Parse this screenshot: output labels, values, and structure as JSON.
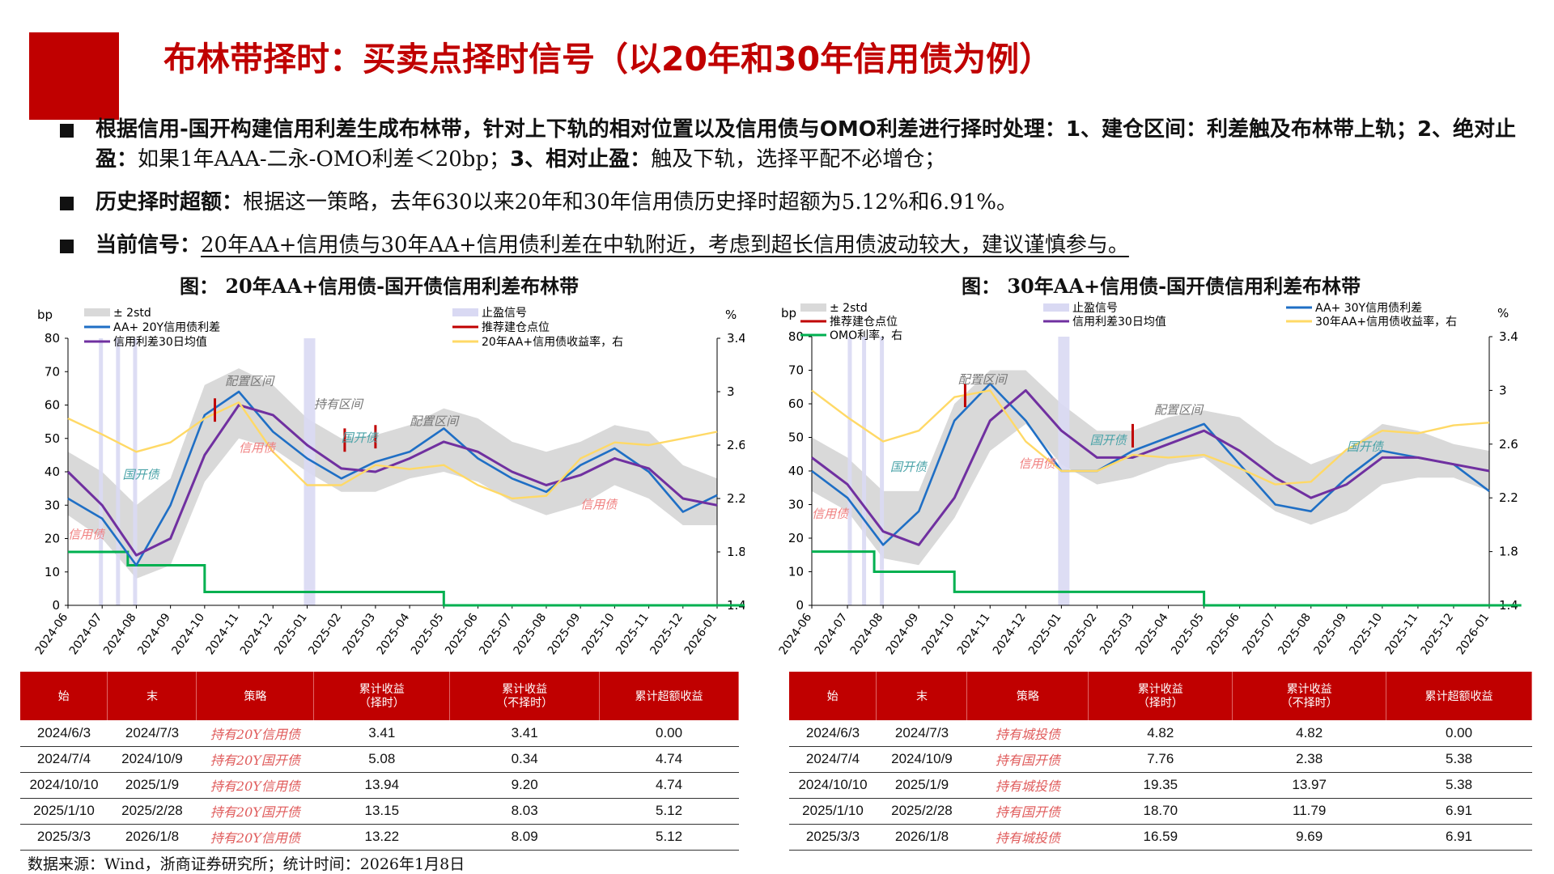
{
  "page_title": "布林带择时：买卖点择时信号（以20年和30年信用债为例）",
  "bullets": [
    {
      "head": "根据信用-国开构建信用利差生成布林带，针对上下轨的相对位置以及信用债与OMO利差进行择时处理：1、建仓区间：利差触及布林带上轨；2、绝对止盈：",
      "body": "如果1年AAA-二永-OMO利差＜20bp；",
      "head2": "3、相对止盈：",
      "body2": "触及下轨，选择平配不必增仓；"
    },
    {
      "head": "历史择时超额：",
      "body": "根据这一策略，去年630以来20年和30年信用债历史择时超额为5.12%和6.91%。"
    },
    {
      "head": "当前信号：",
      "body": "20年AA+信用债与30年AA+信用债利差在中轨附近，考虑到超长信用债波动较大，建议谨慎参与。"
    }
  ],
  "source_note": "数据来源：Wind，浙商证券研究所；统计时间：2026年1月8日",
  "colors": {
    "accent": "#c00000",
    "band": "#d9d9d9",
    "stop_band": "#d9d9f3",
    "spread": "#1f6fc5",
    "ma": "#7030a0",
    "yield": "#ffd966",
    "omo": "#00b050",
    "buy": "#c00000",
    "annot_red": "#f08080",
    "annot_teal": "#4aa3a8"
  },
  "chart_data": [
    {
      "type": "line",
      "title": "图： 20年AA+信用债-国开债信用利差布林带",
      "y_unit_left": "bp",
      "y_unit_right": "%",
      "ylim": [
        0,
        80
      ],
      "ylim_right": [
        1.4,
        3.4
      ],
      "yticks": [
        0,
        10,
        20,
        30,
        40,
        50,
        60,
        70,
        80
      ],
      "yticks_right": [
        1.4,
        1.8,
        2.2,
        2.6,
        3,
        3.4
      ],
      "x_dates": [
        "2024-06",
        "2024-07",
        "2024-08",
        "2024-09",
        "2024-10",
        "2024-11",
        "2024-12",
        "2025-01",
        "2025-02",
        "2025-03",
        "2025-04",
        "2025-05",
        "2025-06",
        "2025-07",
        "2025-08",
        "2025-09",
        "2025-10",
        "2025-11",
        "2025-12",
        "2026-01"
      ],
      "legend": [
        "± 2std",
        "止盈信号",
        "AA+ 20Y信用债利差",
        "推荐建仓点位",
        "信用利差30日均值",
        "20年AA+信用债收益率，右"
      ],
      "legend_position": "top",
      "grid": false,
      "series": [
        {
          "name": "AA+ 20Y信用债利差",
          "axis": "left",
          "values": [
            32,
            26,
            12,
            30,
            57,
            64,
            52,
            44,
            38,
            43,
            46,
            53,
            44,
            38,
            34,
            42,
            47,
            40,
            28,
            33
          ]
        },
        {
          "name": "信用利差30日均值",
          "axis": "left",
          "values": [
            40,
            30,
            15,
            20,
            45,
            60,
            57,
            48,
            41,
            40,
            44,
            49,
            46,
            40,
            36,
            39,
            44,
            41,
            32,
            30
          ]
        },
        {
          "name": "± 2std",
          "axis": "left",
          "upper": [
            46,
            40,
            30,
            38,
            66,
            71,
            66,
            56,
            50,
            51,
            54,
            59,
            56,
            49,
            46,
            49,
            54,
            52,
            42,
            38
          ],
          "lower": [
            27,
            20,
            8,
            12,
            37,
            50,
            47,
            40,
            34,
            34,
            38,
            40,
            37,
            31,
            27,
            30,
            36,
            32,
            24,
            24
          ]
        },
        {
          "name": "20年AA+信用债收益率，右",
          "axis": "right",
          "values": [
            2.8,
            2.68,
            2.55,
            2.62,
            2.8,
            2.92,
            2.55,
            2.3,
            2.3,
            2.45,
            2.42,
            2.45,
            2.3,
            2.2,
            2.22,
            2.5,
            2.62,
            2.6,
            2.65,
            2.7
          ]
        },
        {
          "name": "OMO",
          "axis": "left",
          "step": [
            [
              0,
              16
            ],
            [
              1.75,
              12
            ],
            [
              4,
              4
            ],
            [
              11,
              0
            ],
            [
              19.9,
              0
            ]
          ]
        }
      ],
      "stop_bands": [
        1.0,
        1.5,
        2.0,
        7.0
      ],
      "buy_points": [
        [
          4.3,
          58
        ],
        [
          9.0,
          50
        ],
        [
          8.1,
          49
        ]
      ],
      "annotations": [
        {
          "text": "信用债",
          "x": 0.0,
          "y": 20,
          "color": "red"
        },
        {
          "text": "国开债",
          "x": 1.6,
          "y": 38,
          "color": "teal"
        },
        {
          "text": "配置区间",
          "x": 4.6,
          "y": 66,
          "color": "grey"
        },
        {
          "text": "信用债",
          "x": 5.0,
          "y": 46,
          "color": "red"
        },
        {
          "text": "持有区间",
          "x": 7.2,
          "y": 59,
          "color": "grey"
        },
        {
          "text": "国开债",
          "x": 8.0,
          "y": 49,
          "color": "teal"
        },
        {
          "text": "配置区间",
          "x": 10.0,
          "y": 54,
          "color": "grey"
        },
        {
          "text": "信用债",
          "x": 15.0,
          "y": 29,
          "color": "red"
        }
      ]
    },
    {
      "type": "line",
      "title": "图： 30年AA+信用债-国开债信用利差布林带",
      "y_unit_left": "bp",
      "y_unit_right": "%",
      "ylim": [
        0,
        80
      ],
      "ylim_right": [
        1.4,
        3.4
      ],
      "yticks": [
        0,
        10,
        20,
        30,
        40,
        50,
        60,
        70,
        80
      ],
      "yticks_right": [
        1.4,
        1.8,
        2.2,
        2.6,
        3,
        3.4
      ],
      "x_dates": [
        "2024-06",
        "2024-07",
        "2024-08",
        "2024-09",
        "2024-10",
        "2024-11",
        "2024-12",
        "2025-01",
        "2025-02",
        "2025-03",
        "2025-04",
        "2025-05",
        "2025-06",
        "2025-07",
        "2025-08",
        "2025-09",
        "2025-10",
        "2025-11",
        "2025-12",
        "2026-01"
      ],
      "legend": [
        "± 2std",
        "止盈信号",
        "AA+ 30Y信用债利差",
        "推荐建仓点位",
        "信用利差30日均值",
        "30年AA+信用债收益率，右",
        "OMO利率，右"
      ],
      "legend_position": "top",
      "grid": false,
      "series": [
        {
          "name": "AA+ 30Y信用债利差",
          "axis": "left",
          "values": [
            40,
            32,
            18,
            28,
            55,
            66,
            55,
            40,
            40,
            46,
            50,
            54,
            42,
            30,
            28,
            38,
            46,
            44,
            42,
            34
          ]
        },
        {
          "name": "信用利差30日均值",
          "axis": "left",
          "values": [
            44,
            36,
            22,
            18,
            32,
            55,
            64,
            52,
            44,
            44,
            48,
            52,
            46,
            38,
            32,
            36,
            44,
            44,
            42,
            40
          ]
        },
        {
          "name": "± 2std",
          "axis": "left",
          "upper": [
            50,
            44,
            34,
            34,
            60,
            70,
            70,
            60,
            52,
            52,
            56,
            58,
            56,
            48,
            42,
            46,
            54,
            52,
            48,
            46
          ],
          "lower": [
            34,
            28,
            14,
            12,
            26,
            46,
            54,
            42,
            36,
            38,
            42,
            44,
            36,
            28,
            24,
            28,
            36,
            38,
            38,
            34
          ]
        },
        {
          "name": "30年AA+信用债收益率，右",
          "axis": "right",
          "values": [
            3.0,
            2.8,
            2.62,
            2.7,
            2.95,
            3.0,
            2.62,
            2.4,
            2.4,
            2.52,
            2.5,
            2.52,
            2.42,
            2.3,
            2.32,
            2.56,
            2.7,
            2.68,
            2.74,
            2.76
          ]
        },
        {
          "name": "OMO利率，右",
          "axis": "left",
          "step": [
            [
              0,
              16
            ],
            [
              1.75,
              10
            ],
            [
              4,
              4
            ],
            [
              11,
              0
            ],
            [
              19.9,
              0
            ]
          ]
        }
      ],
      "stop_bands": [
        1.1,
        1.5,
        2.0,
        7.0
      ],
      "buy_points": [
        [
          4.3,
          62
        ],
        [
          9.0,
          50
        ]
      ],
      "annotations": [
        {
          "text": "信用债",
          "x": 0.0,
          "y": 26,
          "color": "red"
        },
        {
          "text": "国开债",
          "x": 2.2,
          "y": 40,
          "color": "teal"
        },
        {
          "text": "配置区间",
          "x": 4.1,
          "y": 66,
          "color": "grey"
        },
        {
          "text": "信用债",
          "x": 5.8,
          "y": 41,
          "color": "red"
        },
        {
          "text": "国开债",
          "x": 7.8,
          "y": 48,
          "color": "teal"
        },
        {
          "text": "配置区间",
          "x": 9.6,
          "y": 57,
          "color": "grey"
        },
        {
          "text": "国开债",
          "x": 15.0,
          "y": 46,
          "color": "teal"
        }
      ]
    }
  ],
  "tables": [
    {
      "headers": [
        "始",
        "末",
        "策略",
        "累计收益\n（择时）",
        "累计收益\n（不择时）",
        "累计超额收益"
      ],
      "rows": [
        [
          "2024/6/3",
          "2024/7/3",
          "持有20Y信用债",
          "3.41",
          "3.41",
          "0.00"
        ],
        [
          "2024/7/4",
          "2024/10/9",
          "持有20Y国开债",
          "5.08",
          "0.34",
          "4.74"
        ],
        [
          "2024/10/10",
          "2025/1/9",
          "持有20Y信用债",
          "13.94",
          "9.20",
          "4.74"
        ],
        [
          "2025/1/10",
          "2025/2/28",
          "持有20Y国开债",
          "13.15",
          "8.03",
          "5.12"
        ],
        [
          "2025/3/3",
          "2026/1/8",
          "持有20Y信用债",
          "13.22",
          "8.09",
          "5.12"
        ]
      ]
    },
    {
      "headers": [
        "始",
        "末",
        "策略",
        "累计收益\n（择时）",
        "累计收益\n（不择时）",
        "累计超额收益"
      ],
      "rows": [
        [
          "2024/6/3",
          "2024/7/3",
          "持有城投债",
          "4.82",
          "4.82",
          "0.00"
        ],
        [
          "2024/7/4",
          "2024/10/9",
          "持有国开债",
          "7.76",
          "2.38",
          "5.38"
        ],
        [
          "2024/10/10",
          "2025/1/9",
          "持有城投债",
          "19.35",
          "13.97",
          "5.38"
        ],
        [
          "2025/1/10",
          "2025/2/28",
          "持有国开债",
          "18.70",
          "11.79",
          "6.91"
        ],
        [
          "2025/3/3",
          "2026/1/8",
          "持有城投债",
          "16.59",
          "9.69",
          "6.91"
        ]
      ]
    }
  ]
}
